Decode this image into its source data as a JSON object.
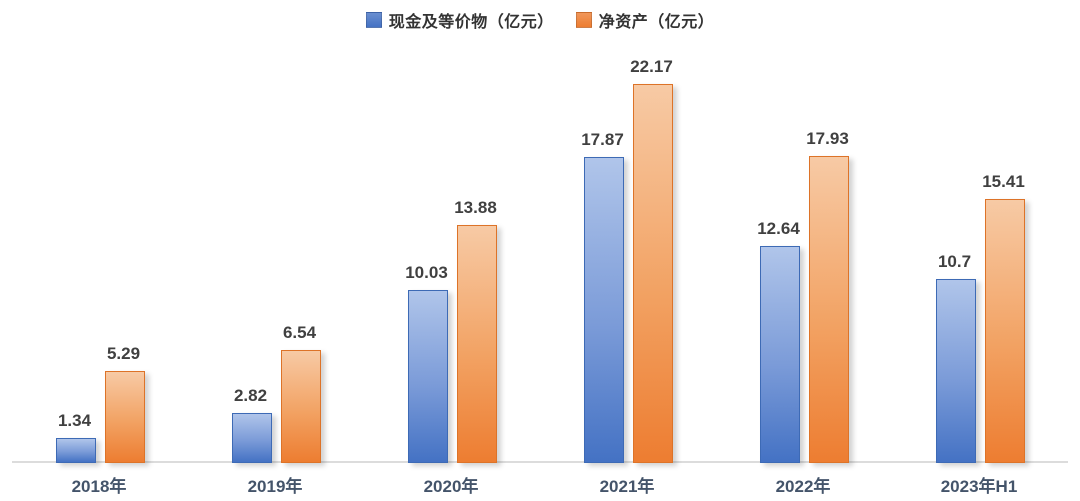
{
  "chart_data": {
    "type": "bar",
    "categories": [
      "2018年",
      "2019年",
      "2020年",
      "2021年",
      "2022年",
      "2023年H1"
    ],
    "series": [
      {
        "name": "现金及等价物（亿元）",
        "color": "#4472c4",
        "values": [
          1.34,
          2.82,
          10.03,
          17.87,
          12.64,
          10.7
        ]
      },
      {
        "name": "净资产（亿元）",
        "color": "#ed7d31",
        "values": [
          5.29,
          6.54,
          13.88,
          22.17,
          17.93,
          15.41
        ]
      }
    ],
    "title": "",
    "xlabel": "",
    "ylabel": "",
    "ylim": [
      0,
      24
    ],
    "grid": false,
    "legend_position": "top",
    "data_labels": true,
    "axis_line_color": "#dcdcdc"
  }
}
